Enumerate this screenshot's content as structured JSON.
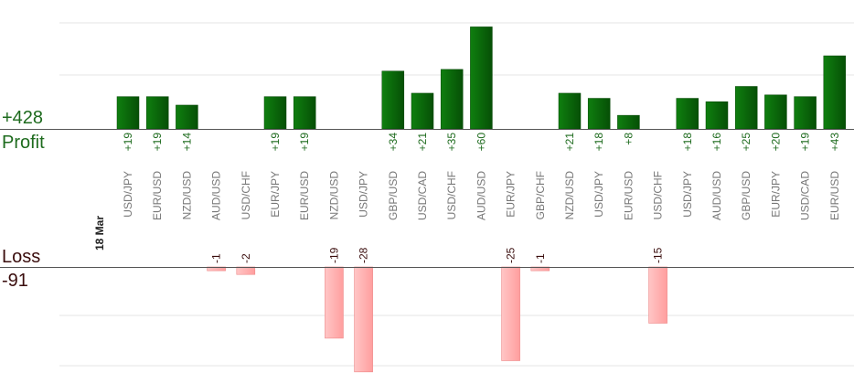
{
  "summary": {
    "profit_total": "+428",
    "profit_label": "Profit",
    "loss_label": "Loss",
    "loss_total": "-91"
  },
  "chart_data": {
    "type": "bar",
    "date_label": "18 Mar",
    "colors": {
      "profit": "#0a6a0a",
      "loss": "#ffb3b3",
      "profit_text": "#1e6b1e",
      "loss_text": "#3a0d0d"
    },
    "profit_ylim": [
      0,
      70
    ],
    "loss_ylim": [
      0,
      40
    ],
    "gridlines": true,
    "categories": [
      "USD/JPY",
      "EUR/USD",
      "NZD/USD",
      "AUD/USD",
      "USD/CHF",
      "EUR/JPY",
      "EUR/USD",
      "NZD/USD",
      "USD/JPY",
      "GBP/USD",
      "USD/CAD",
      "USD/CHF",
      "AUD/USD",
      "EUR/JPY",
      "GBP/CHF",
      "NZD/USD",
      "USD/JPY",
      "EUR/USD",
      "USD/CHF",
      "USD/JPY",
      "AUD/USD",
      "GBP/USD",
      "EUR/JPY",
      "USD/CAD",
      "EUR/USD"
    ],
    "series": [
      {
        "values": [
          19,
          19,
          14,
          null,
          null,
          19,
          19,
          null,
          null,
          34,
          21,
          35,
          60,
          null,
          null,
          21,
          18,
          8,
          null,
          18,
          16,
          25,
          20,
          19,
          43
        ],
        "labels": [
          "+19",
          "+19",
          "+14",
          "",
          "",
          "+19",
          "+19",
          "",
          "",
          "+34",
          "+21",
          "+35",
          "+60",
          "",
          "",
          "+21",
          "+18",
          "+8",
          "",
          "+18",
          "+16",
          "+25",
          "+20",
          "+19",
          "+43"
        ]
      },
      {
        "values": [
          null,
          null,
          null,
          -1,
          -2,
          null,
          null,
          -19,
          -28,
          null,
          null,
          null,
          null,
          -25,
          -1,
          null,
          null,
          null,
          -15,
          null,
          null,
          null,
          null,
          null,
          null
        ],
        "labels": [
          "",
          "",
          "",
          "-1",
          "-2",
          "",
          "",
          "-19",
          "-28",
          "",
          "",
          "",
          "",
          "-25",
          "-1",
          "",
          "",
          "",
          "-15",
          "",
          "",
          "",
          "",
          "",
          ""
        ]
      }
    ]
  }
}
